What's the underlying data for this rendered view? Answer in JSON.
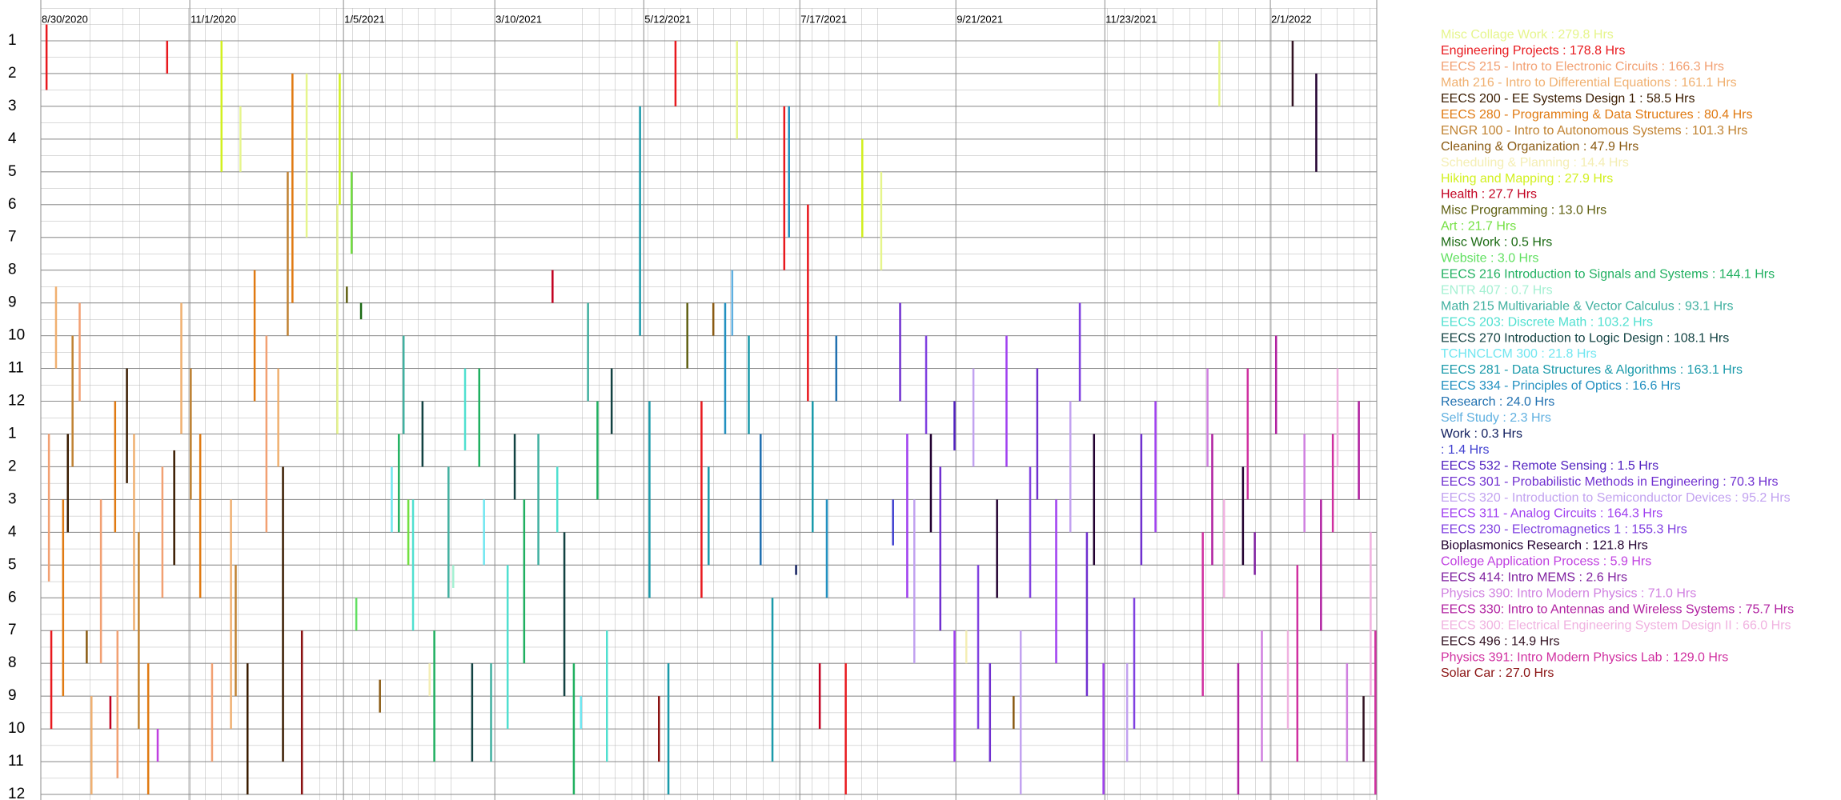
{
  "chart_data": {
    "type": "timeline",
    "xlim": [
      "2020-08-30",
      "2022-03-18"
    ],
    "xticks": [
      {
        "value": "2020-08-30",
        "label": "8/30/2020"
      },
      {
        "value": "2020-11-01",
        "label": "11/1/2020"
      },
      {
        "value": "2021-01-05",
        "label": "1/5/2021"
      },
      {
        "value": "2021-03-10",
        "label": "3/10/2021"
      },
      {
        "value": "2021-05-12",
        "label": "5/12/2021"
      },
      {
        "value": "2021-07-17",
        "label": "7/17/2021"
      },
      {
        "value": "2021-09-21",
        "label": "9/21/2021"
      },
      {
        "value": "2021-11-23",
        "label": "11/23/2021"
      },
      {
        "value": "2022-02-01",
        "label": "2/1/2022"
      }
    ],
    "ylim": [
      0,
      24
    ],
    "yreversed": true,
    "yticks": [
      1,
      2,
      3,
      4,
      5,
      6,
      7,
      8,
      9,
      10,
      11,
      12,
      {
        "value": 13,
        "label": "1"
      },
      {
        "value": 14,
        "label": "2"
      },
      {
        "value": 15,
        "label": "3"
      },
      {
        "value": 16,
        "label": "4"
      },
      {
        "value": 17,
        "label": "5"
      },
      {
        "value": 18,
        "label": "6"
      },
      {
        "value": 19,
        "label": "7"
      },
      {
        "value": 20,
        "label": "8"
      },
      {
        "value": 21,
        "label": "9"
      },
      {
        "value": 22,
        "label": "10"
      },
      {
        "value": 23,
        "label": "11"
      },
      {
        "value": 24,
        "label": "12"
      }
    ],
    "grid": true,
    "series": [
      {
        "name": "Misc Collage Work : 279.8 Hrs",
        "color": "#e6f58c",
        "sessions": [
          [
            "2020-11-22",
            3,
            5
          ],
          [
            "2020-12-20",
            2,
            7
          ],
          [
            "2021-01-02",
            6,
            13
          ],
          [
            "2021-06-20",
            1,
            4
          ],
          [
            "2021-08-20",
            5,
            8
          ],
          [
            "2022-01-10",
            1,
            3
          ]
        ]
      },
      {
        "name": "Engineering Projects : 178.8 Hrs",
        "color": "#e8191e",
        "sessions": [
          [
            "2020-09-01",
            0.5,
            2.5
          ],
          [
            "2020-09-03",
            19,
            22
          ],
          [
            "2020-10-22",
            1,
            2
          ],
          [
            "2021-05-25",
            1,
            3
          ],
          [
            "2021-06-05",
            12,
            18
          ],
          [
            "2021-07-10",
            3,
            8
          ],
          [
            "2021-07-20",
            6,
            12
          ],
          [
            "2021-08-05",
            20,
            24
          ]
        ]
      },
      {
        "name": "EECS 215 - Intro to Electronic Circuits : 166.3 Hrs",
        "color": "#f2a072",
        "sessions": [
          [
            "2020-09-02",
            13,
            17.5
          ],
          [
            "2020-09-15",
            9,
            12
          ],
          [
            "2020-09-24",
            15,
            20
          ],
          [
            "2020-10-01",
            19,
            23.5
          ],
          [
            "2020-10-20",
            14,
            18
          ],
          [
            "2020-11-10",
            20,
            23
          ],
          [
            "2020-12-03",
            10,
            16
          ]
        ]
      },
      {
        "name": "Math 216 - Intro to Differential Equations : 161.1 Hrs",
        "color": "#f0b070",
        "sessions": [
          [
            "2020-09-05",
            8.5,
            11
          ],
          [
            "2020-09-20",
            21,
            24
          ],
          [
            "2020-10-08",
            13,
            19
          ],
          [
            "2020-10-28",
            9,
            13
          ],
          [
            "2020-11-18",
            15,
            22
          ],
          [
            "2020-12-08",
            11,
            14
          ]
        ]
      },
      {
        "name": "EECS 200 - EE Systems Design 1 : 58.5 Hrs",
        "color": "#3a1c00",
        "sessions": [
          [
            "2020-09-10",
            13,
            16
          ],
          [
            "2020-10-05",
            11,
            14.5
          ],
          [
            "2020-10-25",
            13.5,
            17
          ],
          [
            "2020-11-25",
            20,
            24
          ],
          [
            "2020-12-10",
            14,
            23
          ]
        ]
      },
      {
        "name": "EECS 280 - Programming & Data Structures : 80.4 Hrs",
        "color": "#e07a12",
        "sessions": [
          [
            "2020-09-08",
            15,
            21
          ],
          [
            "2020-09-30",
            12,
            16
          ],
          [
            "2020-10-14",
            20,
            24
          ],
          [
            "2020-11-05",
            13,
            18
          ],
          [
            "2020-11-28",
            8,
            12
          ],
          [
            "2020-12-14",
            2,
            9
          ]
        ]
      },
      {
        "name": "ENGR 100 - Intro to Autonomous Systems : 101.3 Hrs",
        "color": "#c08232",
        "sessions": [
          [
            "2020-09-12",
            10,
            14
          ],
          [
            "2020-10-10",
            16,
            22
          ],
          [
            "2020-11-01",
            11,
            15
          ],
          [
            "2020-11-20",
            17,
            21
          ],
          [
            "2020-12-12",
            5,
            10
          ]
        ]
      },
      {
        "name": "Cleaning & Organization : 47.9 Hrs",
        "color": "#8a5a12",
        "sessions": [
          [
            "2020-09-18",
            19,
            20
          ],
          [
            "2021-01-20",
            20.5,
            21.5
          ],
          [
            "2021-06-10",
            9,
            10
          ],
          [
            "2021-10-15",
            21,
            22
          ]
        ]
      },
      {
        "name": "Scheduling & Planning : 14.4 Hrs",
        "color": "#f4eeb4",
        "sessions": [
          [
            "2021-02-10",
            20,
            21
          ],
          [
            "2021-09-25",
            19,
            20
          ]
        ]
      },
      {
        "name": "Hiking and Mapping : 27.9 Hrs",
        "color": "#d2f020",
        "sessions": [
          [
            "2020-11-14",
            1,
            5
          ],
          [
            "2021-01-03",
            2,
            6
          ],
          [
            "2021-08-12",
            4,
            7
          ]
        ]
      },
      {
        "name": "Health : 27.7 Hrs",
        "color": "#c20020",
        "sessions": [
          [
            "2020-09-28",
            21,
            22
          ],
          [
            "2021-04-03",
            8,
            9
          ],
          [
            "2021-07-25",
            20,
            22
          ]
        ]
      },
      {
        "name": "Misc Programming : 13.0 Hrs",
        "color": "#606012",
        "sessions": [
          [
            "2021-01-06",
            8.5,
            9
          ],
          [
            "2021-05-30",
            9,
            11
          ]
        ]
      },
      {
        "name": "Art : 21.7 Hrs",
        "color": "#72e040",
        "sessions": [
          [
            "2021-01-08",
            5,
            7.5
          ],
          [
            "2021-02-01",
            15,
            17
          ]
        ]
      },
      {
        "name": "Misc Work : 0.5 Hrs",
        "color": "#1a6a12",
        "sessions": [
          [
            "2021-01-12",
            9,
            9.5
          ]
        ]
      },
      {
        "name": "Website : 3.0 Hrs",
        "color": "#60e060",
        "sessions": [
          [
            "2021-01-10",
            18,
            19
          ]
        ]
      },
      {
        "name": "EECS 216 Introduction to Signals and Systems : 144.1 Hrs",
        "color": "#20b060",
        "sessions": [
          [
            "2021-01-28",
            13,
            16
          ],
          [
            "2021-02-12",
            19,
            23
          ],
          [
            "2021-03-03",
            11,
            14
          ],
          [
            "2021-03-22",
            15,
            20
          ],
          [
            "2021-04-12",
            20,
            24
          ],
          [
            "2021-04-22",
            12,
            15
          ]
        ]
      },
      {
        "name": "ENTR 407 : 0.7 Hrs",
        "color": "#a4f0d2",
        "sessions": [
          [
            "2021-02-20",
            17,
            17.7
          ]
        ]
      },
      {
        "name": "Math 215 Multivariable & Vector Calculus : 93.1 Hrs",
        "color": "#40b0a0",
        "sessions": [
          [
            "2021-01-30",
            10,
            13
          ],
          [
            "2021-02-18",
            14,
            18
          ],
          [
            "2021-03-08",
            20,
            23
          ],
          [
            "2021-03-28",
            13,
            17
          ],
          [
            "2021-04-18",
            9,
            12
          ]
        ]
      },
      {
        "name": "EECS 203: Discrete Math : 103.2 Hrs",
        "color": "#50e0d0",
        "sessions": [
          [
            "2021-02-03",
            15,
            19
          ],
          [
            "2021-02-25",
            11,
            13.5
          ],
          [
            "2021-03-15",
            17,
            22
          ],
          [
            "2021-04-05",
            14,
            16
          ],
          [
            "2021-04-26",
            19,
            23
          ]
        ]
      },
      {
        "name": "EECS 270 Introduction to Logic Design : 108.1 Hrs",
        "color": "#124242",
        "sessions": [
          [
            "2021-02-07",
            12,
            14
          ],
          [
            "2021-02-28",
            20,
            23
          ],
          [
            "2021-03-18",
            13,
            15
          ],
          [
            "2021-04-08",
            16,
            21
          ],
          [
            "2021-04-28",
            11,
            13
          ]
        ]
      },
      {
        "name": "TCHNCLCM 300 : 21.8 Hrs",
        "color": "#70e6f0",
        "sessions": [
          [
            "2021-01-25",
            14,
            16
          ],
          [
            "2021-03-05",
            15,
            17
          ],
          [
            "2021-04-15",
            21,
            22
          ]
        ]
      },
      {
        "name": "EECS 281 - Data Structures & Algorithms : 163.1 Hrs",
        "color": "#1a9aaa",
        "sessions": [
          [
            "2021-05-10",
            3,
            10
          ],
          [
            "2021-05-14",
            12,
            18
          ],
          [
            "2021-05-22",
            20,
            24
          ],
          [
            "2021-06-08",
            14,
            17
          ],
          [
            "2021-06-25",
            10,
            13
          ],
          [
            "2021-07-05",
            18,
            23
          ],
          [
            "2021-07-22",
            12,
            16
          ]
        ]
      },
      {
        "name": "EECS 334 - Principles of Optics : 16.6 Hrs",
        "color": "#2290c0",
        "sessions": [
          [
            "2021-06-15",
            9,
            13
          ],
          [
            "2021-07-12",
            3,
            7
          ],
          [
            "2021-07-28",
            15,
            18
          ]
        ]
      },
      {
        "name": "Research : 24.0 Hrs",
        "color": "#2070b0",
        "sessions": [
          [
            "2021-06-30",
            13,
            17
          ],
          [
            "2021-08-01",
            10,
            12
          ]
        ]
      },
      {
        "name": "Self Study : 2.3 Hrs",
        "color": "#60b0e0",
        "sessions": [
          [
            "2021-06-18",
            8,
            10
          ]
        ]
      },
      {
        "name": "Work : 0.3 Hrs",
        "color": "#122060",
        "sessions": [
          [
            "2021-07-15",
            17,
            17.3
          ]
        ]
      },
      {
        "name": " : 1.4 Hrs",
        "color": "#4040d0",
        "sessions": [
          [
            "2021-08-25",
            15,
            16.4
          ]
        ]
      },
      {
        "name": "EECS 532 - Remote Sensing : 1.5 Hrs",
        "color": "#5222c0",
        "sessions": [
          [
            "2021-09-20",
            12,
            13.5
          ]
        ]
      },
      {
        "name": "EECS 301 - Probabilistic Methods in Engineering : 70.3 Hrs",
        "color": "#7030d0",
        "sessions": [
          [
            "2021-08-28",
            9,
            12
          ],
          [
            "2021-09-14",
            14,
            19
          ],
          [
            "2021-10-05",
            20,
            23
          ],
          [
            "2021-10-25",
            11,
            15
          ],
          [
            "2021-11-15",
            16,
            21
          ],
          [
            "2021-12-08",
            13,
            17
          ]
        ]
      },
      {
        "name": "EECS 320 - Introduction to Semiconductor Devices : 95.2 Hrs",
        "color": "#c2a2f0",
        "sessions": [
          [
            "2021-09-03",
            15,
            20
          ],
          [
            "2021-09-28",
            11,
            14
          ],
          [
            "2021-10-18",
            19,
            24
          ],
          [
            "2021-11-08",
            12,
            16
          ],
          [
            "2021-12-02",
            20,
            23
          ]
        ]
      },
      {
        "name": "EECS 311 - Analog Circuits : 164.3 Hrs",
        "color": "#a040f0",
        "sessions": [
          [
            "2021-08-31",
            13,
            18
          ],
          [
            "2021-09-20",
            19,
            23
          ],
          [
            "2021-10-12",
            10,
            14
          ],
          [
            "2021-11-02",
            15,
            20
          ],
          [
            "2021-11-22",
            20,
            24
          ],
          [
            "2021-12-14",
            12,
            16
          ]
        ]
      },
      {
        "name": "EECS 230 - Electromagnetics 1 : 155.3 Hrs",
        "color": "#8040e0",
        "sessions": [
          [
            "2021-09-08",
            10,
            13
          ],
          [
            "2021-09-30",
            17,
            22
          ],
          [
            "2021-10-22",
            14,
            18
          ],
          [
            "2021-11-12",
            9,
            12
          ],
          [
            "2021-12-05",
            18,
            22
          ]
        ]
      },
      {
        "name": "Bioplasmonics Research : 121.8 Hrs",
        "color": "#220030",
        "sessions": [
          [
            "2021-09-10",
            13,
            16
          ],
          [
            "2021-10-08",
            15,
            18
          ],
          [
            "2021-11-18",
            13,
            17
          ],
          [
            "2022-01-20",
            14,
            17
          ],
          [
            "2022-02-20",
            2,
            5
          ]
        ]
      },
      {
        "name": "College Application Process : 5.9 Hrs",
        "color": "#c040e0",
        "sessions": [
          [
            "2020-10-18",
            22,
            23
          ]
        ]
      },
      {
        "name": "EECS 414: Intro MEMS : 2.6 Hrs",
        "color": "#8022a0",
        "sessions": [
          [
            "2022-01-25",
            16,
            17.3
          ]
        ]
      },
      {
        "name": "Physics 390: Intro Modern Physics : 71.0 Hrs",
        "color": "#d080e0",
        "sessions": [
          [
            "2022-01-05",
            11,
            14
          ],
          [
            "2022-01-28",
            19,
            23
          ],
          [
            "2022-02-15",
            13,
            16
          ],
          [
            "2022-03-05",
            20,
            23
          ]
        ]
      },
      {
        "name": "EECS 330: Intro to Antennas and Wireless Systems : 75.7 Hrs",
        "color": "#b020a0",
        "sessions": [
          [
            "2022-01-07",
            13,
            17
          ],
          [
            "2022-01-18",
            20,
            24
          ],
          [
            "2022-02-03",
            10,
            13
          ],
          [
            "2022-02-22",
            15,
            19
          ],
          [
            "2022-03-10",
            12,
            15
          ]
        ]
      },
      {
        "name": "EECS 300: Electrical Engineering System Design II : 66.0 Hrs",
        "color": "#f0b2e0",
        "sessions": [
          [
            "2022-01-12",
            15,
            18
          ],
          [
            "2022-02-08",
            19,
            22
          ],
          [
            "2022-03-01",
            11,
            14
          ],
          [
            "2022-03-15",
            16,
            21
          ]
        ]
      },
      {
        "name": "EECS 496 : 14.9 Hrs",
        "color": "#321222",
        "sessions": [
          [
            "2022-02-10",
            1,
            3
          ],
          [
            "2022-03-12",
            21,
            23
          ]
        ]
      },
      {
        "name": "Physics 391: Intro Modern Physics Lab : 129.0 Hrs",
        "color": "#d030a0",
        "sessions": [
          [
            "2022-01-03",
            16,
            21
          ],
          [
            "2022-01-22",
            11,
            15
          ],
          [
            "2022-02-12",
            17,
            23
          ],
          [
            "2022-02-27",
            13,
            16
          ],
          [
            "2022-03-17",
            19,
            24
          ]
        ]
      },
      {
        "name": "Solar Car : 27.0 Hrs",
        "color": "#8a1212",
        "sessions": [
          [
            "2020-12-18",
            19,
            24
          ],
          [
            "2021-05-18",
            21,
            23
          ]
        ]
      }
    ]
  }
}
